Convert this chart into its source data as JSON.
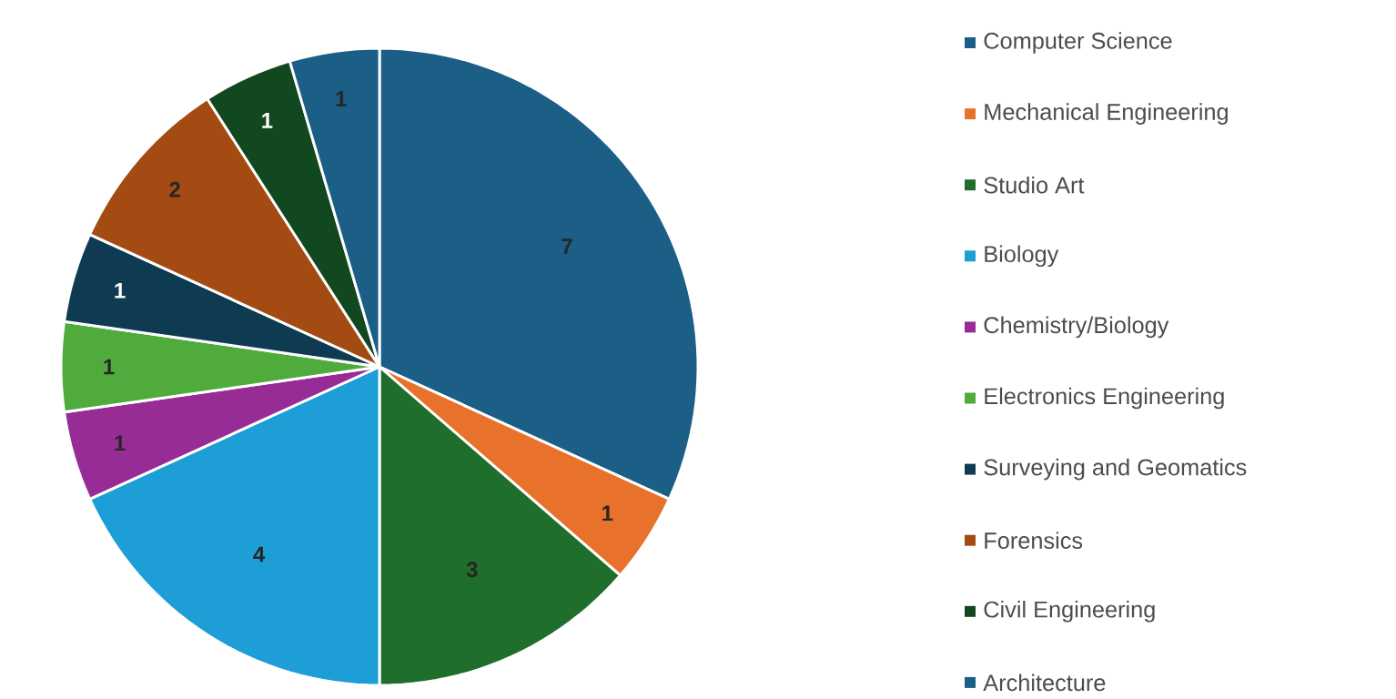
{
  "chart_data": {
    "type": "pie",
    "categories": [
      "Computer Science",
      "Mechanical Engineering",
      "Studio Art",
      "Biology",
      "Chemistry/Biology",
      "Electronics Engineering",
      "Surveying and Geomatics",
      "Forensics",
      "Civil Engineering",
      "Architecture"
    ],
    "values": [
      7,
      1,
      3,
      4,
      1,
      1,
      1,
      2,
      1,
      1
    ],
    "colors": [
      "#1b5e86",
      "#e8722c",
      "#1f6e2b",
      "#1e9ed6",
      "#982c96",
      "#4fac3c",
      "#0f3b52",
      "#a34b13",
      "#11481f",
      "#1b5e86"
    ],
    "data_labels": true,
    "legend": "right"
  }
}
